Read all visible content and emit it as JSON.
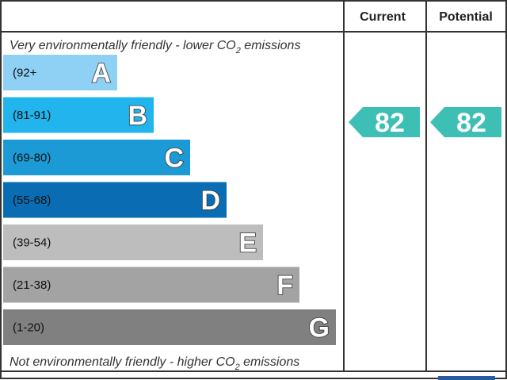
{
  "header": {
    "current": "Current",
    "potential": "Potential"
  },
  "top_note": {
    "text": "Very environmentally friendly - lower CO",
    "sub": "2",
    "tail": " emissions"
  },
  "bottom_note": {
    "text": "Not environmentally friendly - higher CO",
    "sub": "2",
    "tail": " emissions"
  },
  "bands": [
    {
      "range": "(92+",
      "letter": "A",
      "color": "#8fd0f5"
    },
    {
      "range": "(81-91)",
      "letter": "B",
      "color": "#22b4ec"
    },
    {
      "range": "(69-80)",
      "letter": "C",
      "color": "#1b9ad6"
    },
    {
      "range": "(55-68)",
      "letter": "D",
      "color": "#0a6db4"
    },
    {
      "range": "(39-54)",
      "letter": "E",
      "color": "#bdbdbd"
    },
    {
      "range": "(21-38)",
      "letter": "F",
      "color": "#a3a3a3"
    },
    {
      "range": "(1-20)",
      "letter": "G",
      "color": "#808080"
    }
  ],
  "current": {
    "score": "82",
    "color": "#3dbfb5"
  },
  "potential": {
    "score": "82",
    "color": "#3dbfb5"
  }
}
